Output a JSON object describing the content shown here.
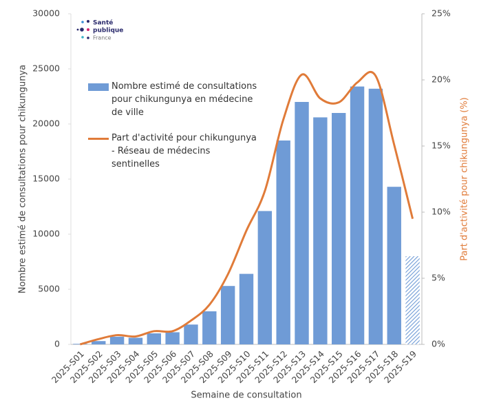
{
  "logo": {
    "line1": "Santé",
    "line2": "publique",
    "line3": "France"
  },
  "chart_data": {
    "type": "bar-line",
    "x_label": "Semaine de consultation",
    "y_label": "Nombre estimé de consultations pour chikungunya",
    "y2_label": "Part d'activité pour chikungunya (%)",
    "categories": [
      "2025-S01",
      "2025-S02",
      "2025-S03",
      "2025-S04",
      "2025-S05",
      "2025-S06",
      "2025-S07",
      "2025-S08",
      "2025-S09",
      "2025-S10",
      "2025-S11",
      "2025-S12",
      "2025-S13",
      "2025-S14",
      "2025-S15",
      "2025-S16",
      "2025-S17",
      "2025-S18",
      "2025-S19"
    ],
    "series": [
      {
        "name": "Nombre estimé de consultations pour chikungunya en médecine de ville",
        "type": "bar",
        "color": "#6f9bd6",
        "hatched_indices": [
          18
        ],
        "values": [
          50,
          300,
          700,
          600,
          1000,
          1100,
          1800,
          3000,
          5300,
          6400,
          12100,
          18500,
          22000,
          20600,
          21000,
          23400,
          23200,
          14300,
          8000
        ]
      },
      {
        "name": "Part d'activité pour chikungunya - Réseau de médecins sentinelles",
        "type": "line",
        "axis": "y2",
        "color": "#e07b39",
        "values": [
          0.0,
          0.4,
          0.7,
          0.6,
          1.0,
          1.0,
          1.8,
          3.0,
          5.3,
          8.6,
          11.6,
          17.0,
          20.4,
          18.6,
          18.3,
          19.8,
          20.3,
          15.1,
          9.5
        ]
      }
    ],
    "ylim": [
      0,
      30000
    ],
    "yticks": [
      0,
      5000,
      10000,
      15000,
      20000,
      25000,
      30000
    ],
    "y2lim": [
      0,
      25
    ],
    "y2ticks": [
      {
        "value": 0,
        "label": "0%"
      },
      {
        "value": 5,
        "label": "5%"
      },
      {
        "value": 10,
        "label": "10%"
      },
      {
        "value": 15,
        "label": "15%"
      },
      {
        "value": 20,
        "label": "20%"
      },
      {
        "value": 25,
        "label": "25%"
      }
    ],
    "grid": false
  }
}
